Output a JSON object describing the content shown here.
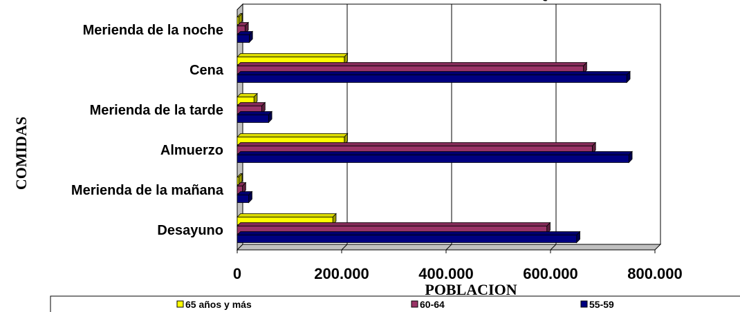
{
  "chart_data": {
    "type": "bar",
    "orientation": "horizontal",
    "title": "Q",
    "xlabel": "POBLACION",
    "ylabel": "COMIDAS",
    "categories": [
      "Desayuno",
      "Merienda de la mañana",
      "Almuerzo",
      "Merienda de la tarde",
      "Cena",
      "Merienda de la noche"
    ],
    "series": [
      {
        "name": "65 años  y más",
        "color": "#FFFF00",
        "values": [
          183000,
          3000,
          205000,
          32000,
          205000,
          3000
        ]
      },
      {
        "name": "60-64",
        "color": "#993366",
        "values": [
          593000,
          10000,
          680000,
          47000,
          663000,
          15000
        ]
      },
      {
        "name": "55-59",
        "color": "#000080",
        "values": [
          650000,
          22000,
          750000,
          60000,
          746000,
          23000
        ]
      }
    ],
    "xlim": [
      0,
      800000
    ],
    "xticks": [
      0,
      200000,
      400000,
      600000,
      800000
    ],
    "xtick_labels": [
      "0",
      "200.000",
      "400.000",
      "600.000",
      "800.000"
    ],
    "grid": true,
    "legend_position": "bottom"
  }
}
